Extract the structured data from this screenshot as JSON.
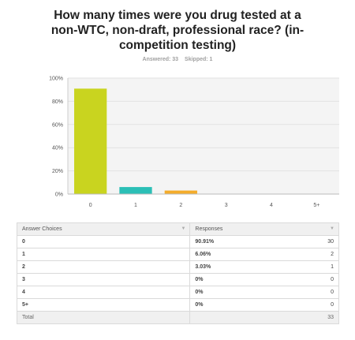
{
  "question": {
    "title": "How many times were you drug tested at a non-WTC, non-draft, professional race? (in-competition testing)",
    "answered": "Answered: 33",
    "skipped": "Skipped: 1"
  },
  "chart_data": {
    "type": "bar",
    "categories": [
      "0",
      "1",
      "2",
      "3",
      "4",
      "5+"
    ],
    "values": [
      90.91,
      6.06,
      3.03,
      0,
      0,
      0
    ],
    "colors": [
      "#c9d41f",
      "#2bbfb6",
      "#f4ac2b",
      "#6f7fc5",
      "#e46c74",
      "#8bcf5f"
    ],
    "y_ticks": [
      "0%",
      "20%",
      "40%",
      "60%",
      "80%",
      "100%"
    ],
    "ylim": [
      0,
      100
    ],
    "grid": true,
    "title": "",
    "xlabel": "",
    "ylabel": ""
  },
  "table": {
    "headers": {
      "choices": "Answer Choices",
      "responses": "Responses"
    },
    "rows": [
      {
        "choice": "0",
        "percent": "90.91%",
        "count": "30"
      },
      {
        "choice": "1",
        "percent": "6.06%",
        "count": "2"
      },
      {
        "choice": "2",
        "percent": "3.03%",
        "count": "1"
      },
      {
        "choice": "3",
        "percent": "0%",
        "count": "0"
      },
      {
        "choice": "4",
        "percent": "0%",
        "count": "0"
      },
      {
        "choice": "5+",
        "percent": "0%",
        "count": "0"
      }
    ],
    "total_label": "Total",
    "total_count": "33"
  }
}
